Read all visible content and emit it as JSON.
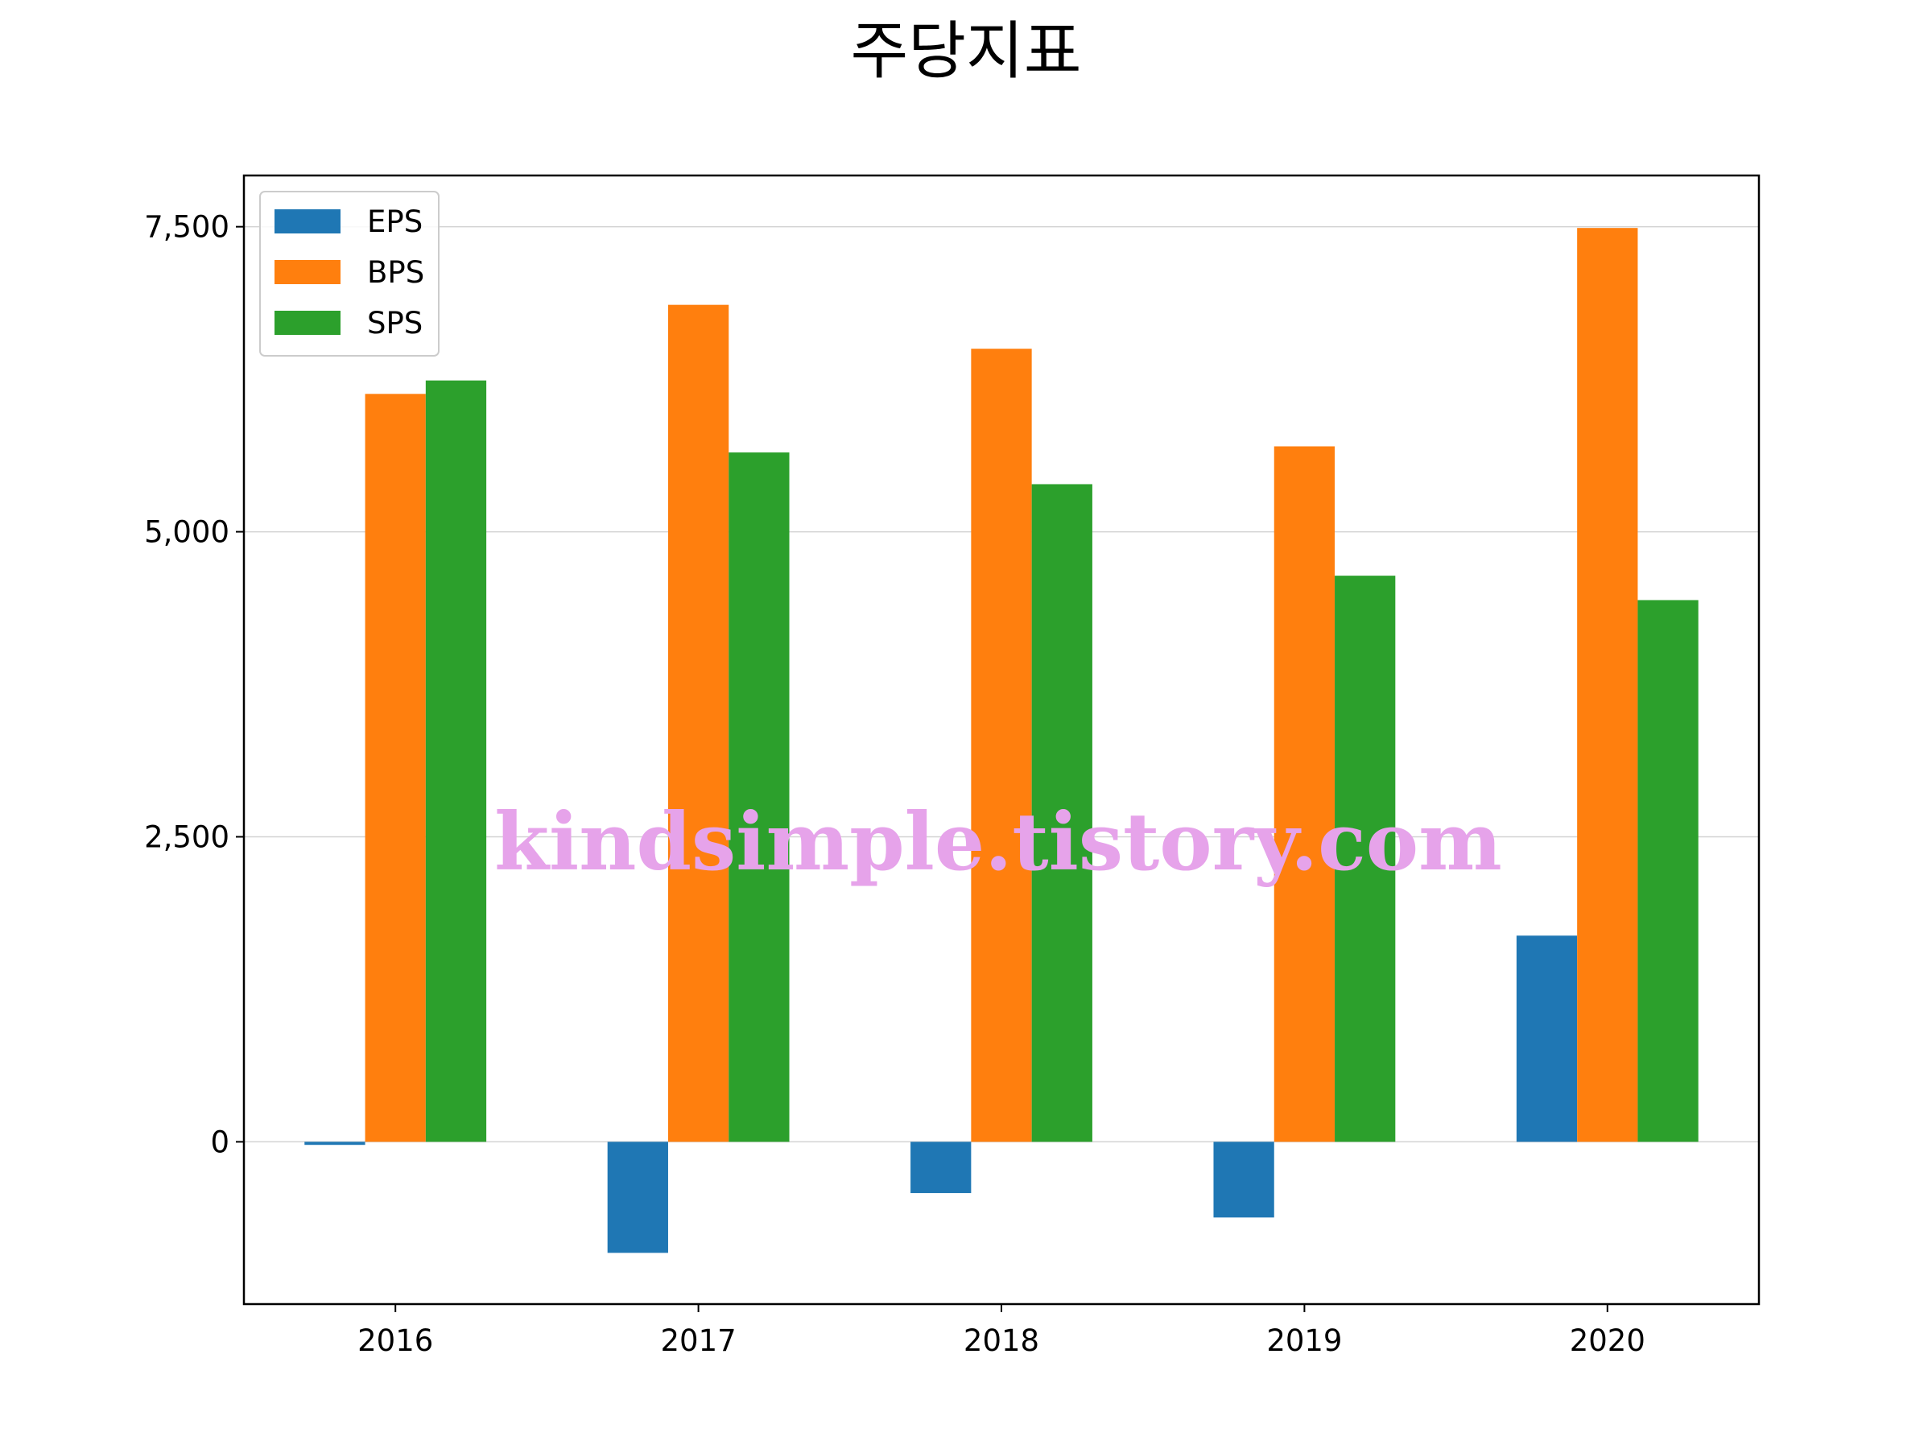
{
  "chart_data": {
    "type": "bar",
    "title": "주당지표",
    "xlabel": "",
    "ylabel": "",
    "categories": [
      "2016",
      "2017",
      "2018",
      "2019",
      "2020"
    ],
    "series": [
      {
        "name": "EPS",
        "color": "#1f77b4",
        "values": [
          -25,
          -910,
          -420,
          -620,
          1690
        ]
      },
      {
        "name": "BPS",
        "color": "#ff7f0e",
        "values": [
          6130,
          6860,
          6500,
          5700,
          7490
        ]
      },
      {
        "name": "SPS",
        "color": "#2ca02c",
        "values": [
          6240,
          5650,
          5390,
          4640,
          4440
        ]
      }
    ],
    "yticks": [
      0,
      2500,
      5000,
      7500
    ],
    "ytick_labels": [
      "0",
      "2,500",
      "5,000",
      "7,500"
    ],
    "ylim": [
      -1330,
      7920
    ],
    "grid": "horizontal",
    "legend_position": "top-left"
  },
  "watermark": "kindsimple.tistory.com"
}
